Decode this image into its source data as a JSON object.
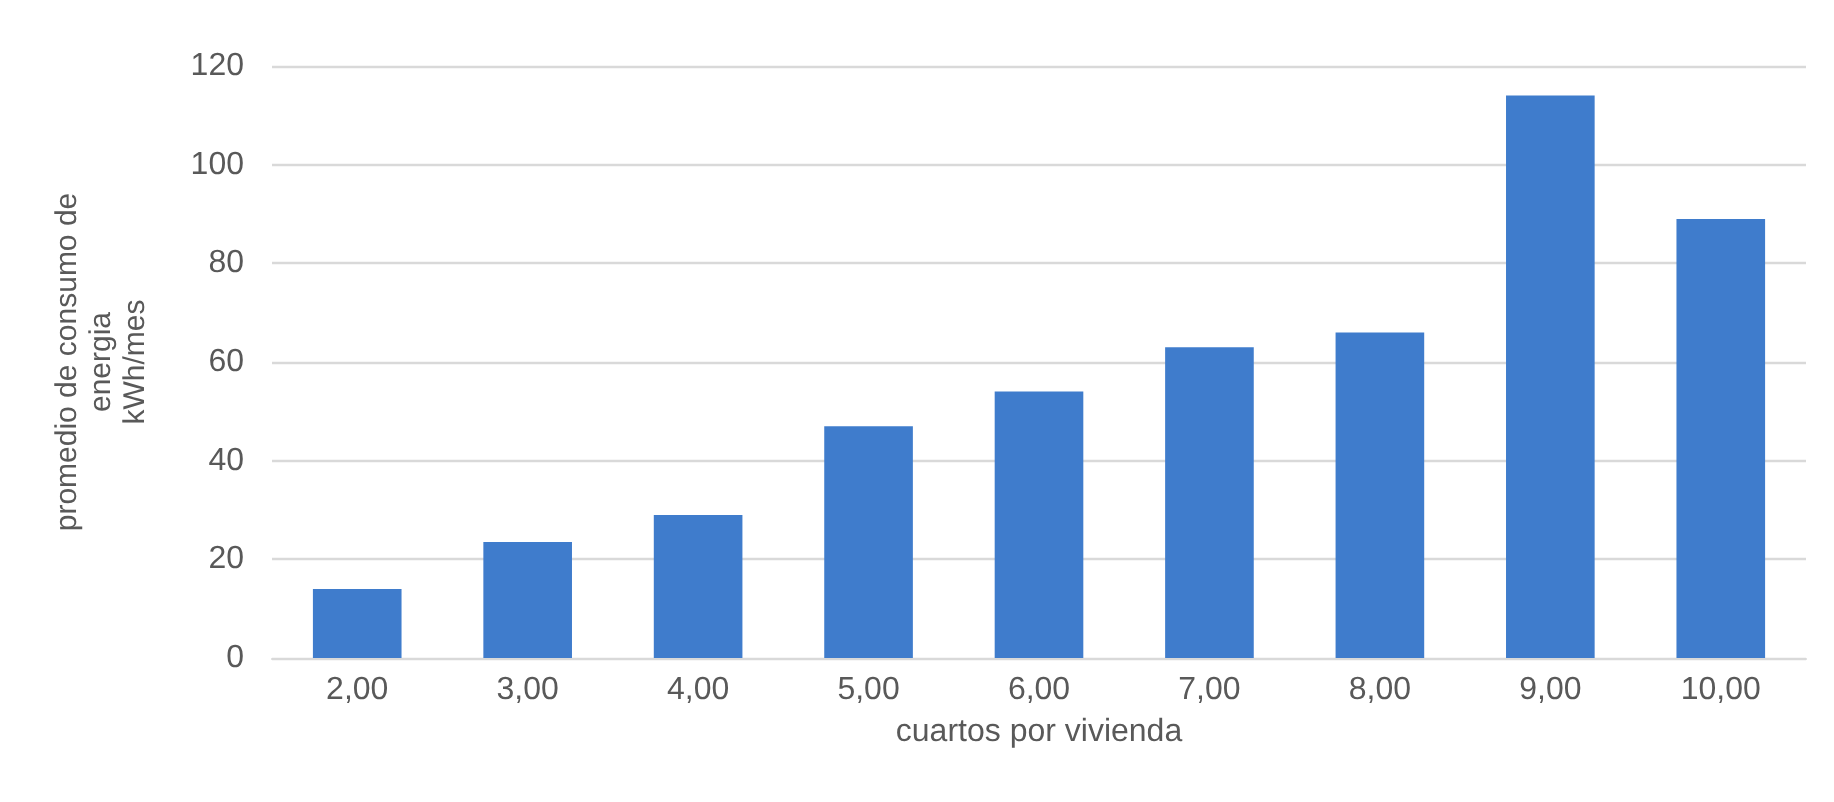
{
  "chart_data": {
    "type": "bar",
    "xlabel": "cuartos por vivienda",
    "ylabel": "promedio de consumo de\nenergia\nkWh/mes",
    "categories": [
      "2,00",
      "3,00",
      "4,00",
      "5,00",
      "6,00",
      "7,00",
      "8,00",
      "9,00",
      "10,00"
    ],
    "values": [
      14,
      23.5,
      29,
      47,
      54,
      63,
      66,
      114,
      89
    ],
    "color": "#3f7ccc",
    "ylim": [
      0,
      120
    ],
    "yticks": [
      0,
      20,
      40,
      60,
      80,
      100,
      120
    ],
    "grid": "y"
  }
}
